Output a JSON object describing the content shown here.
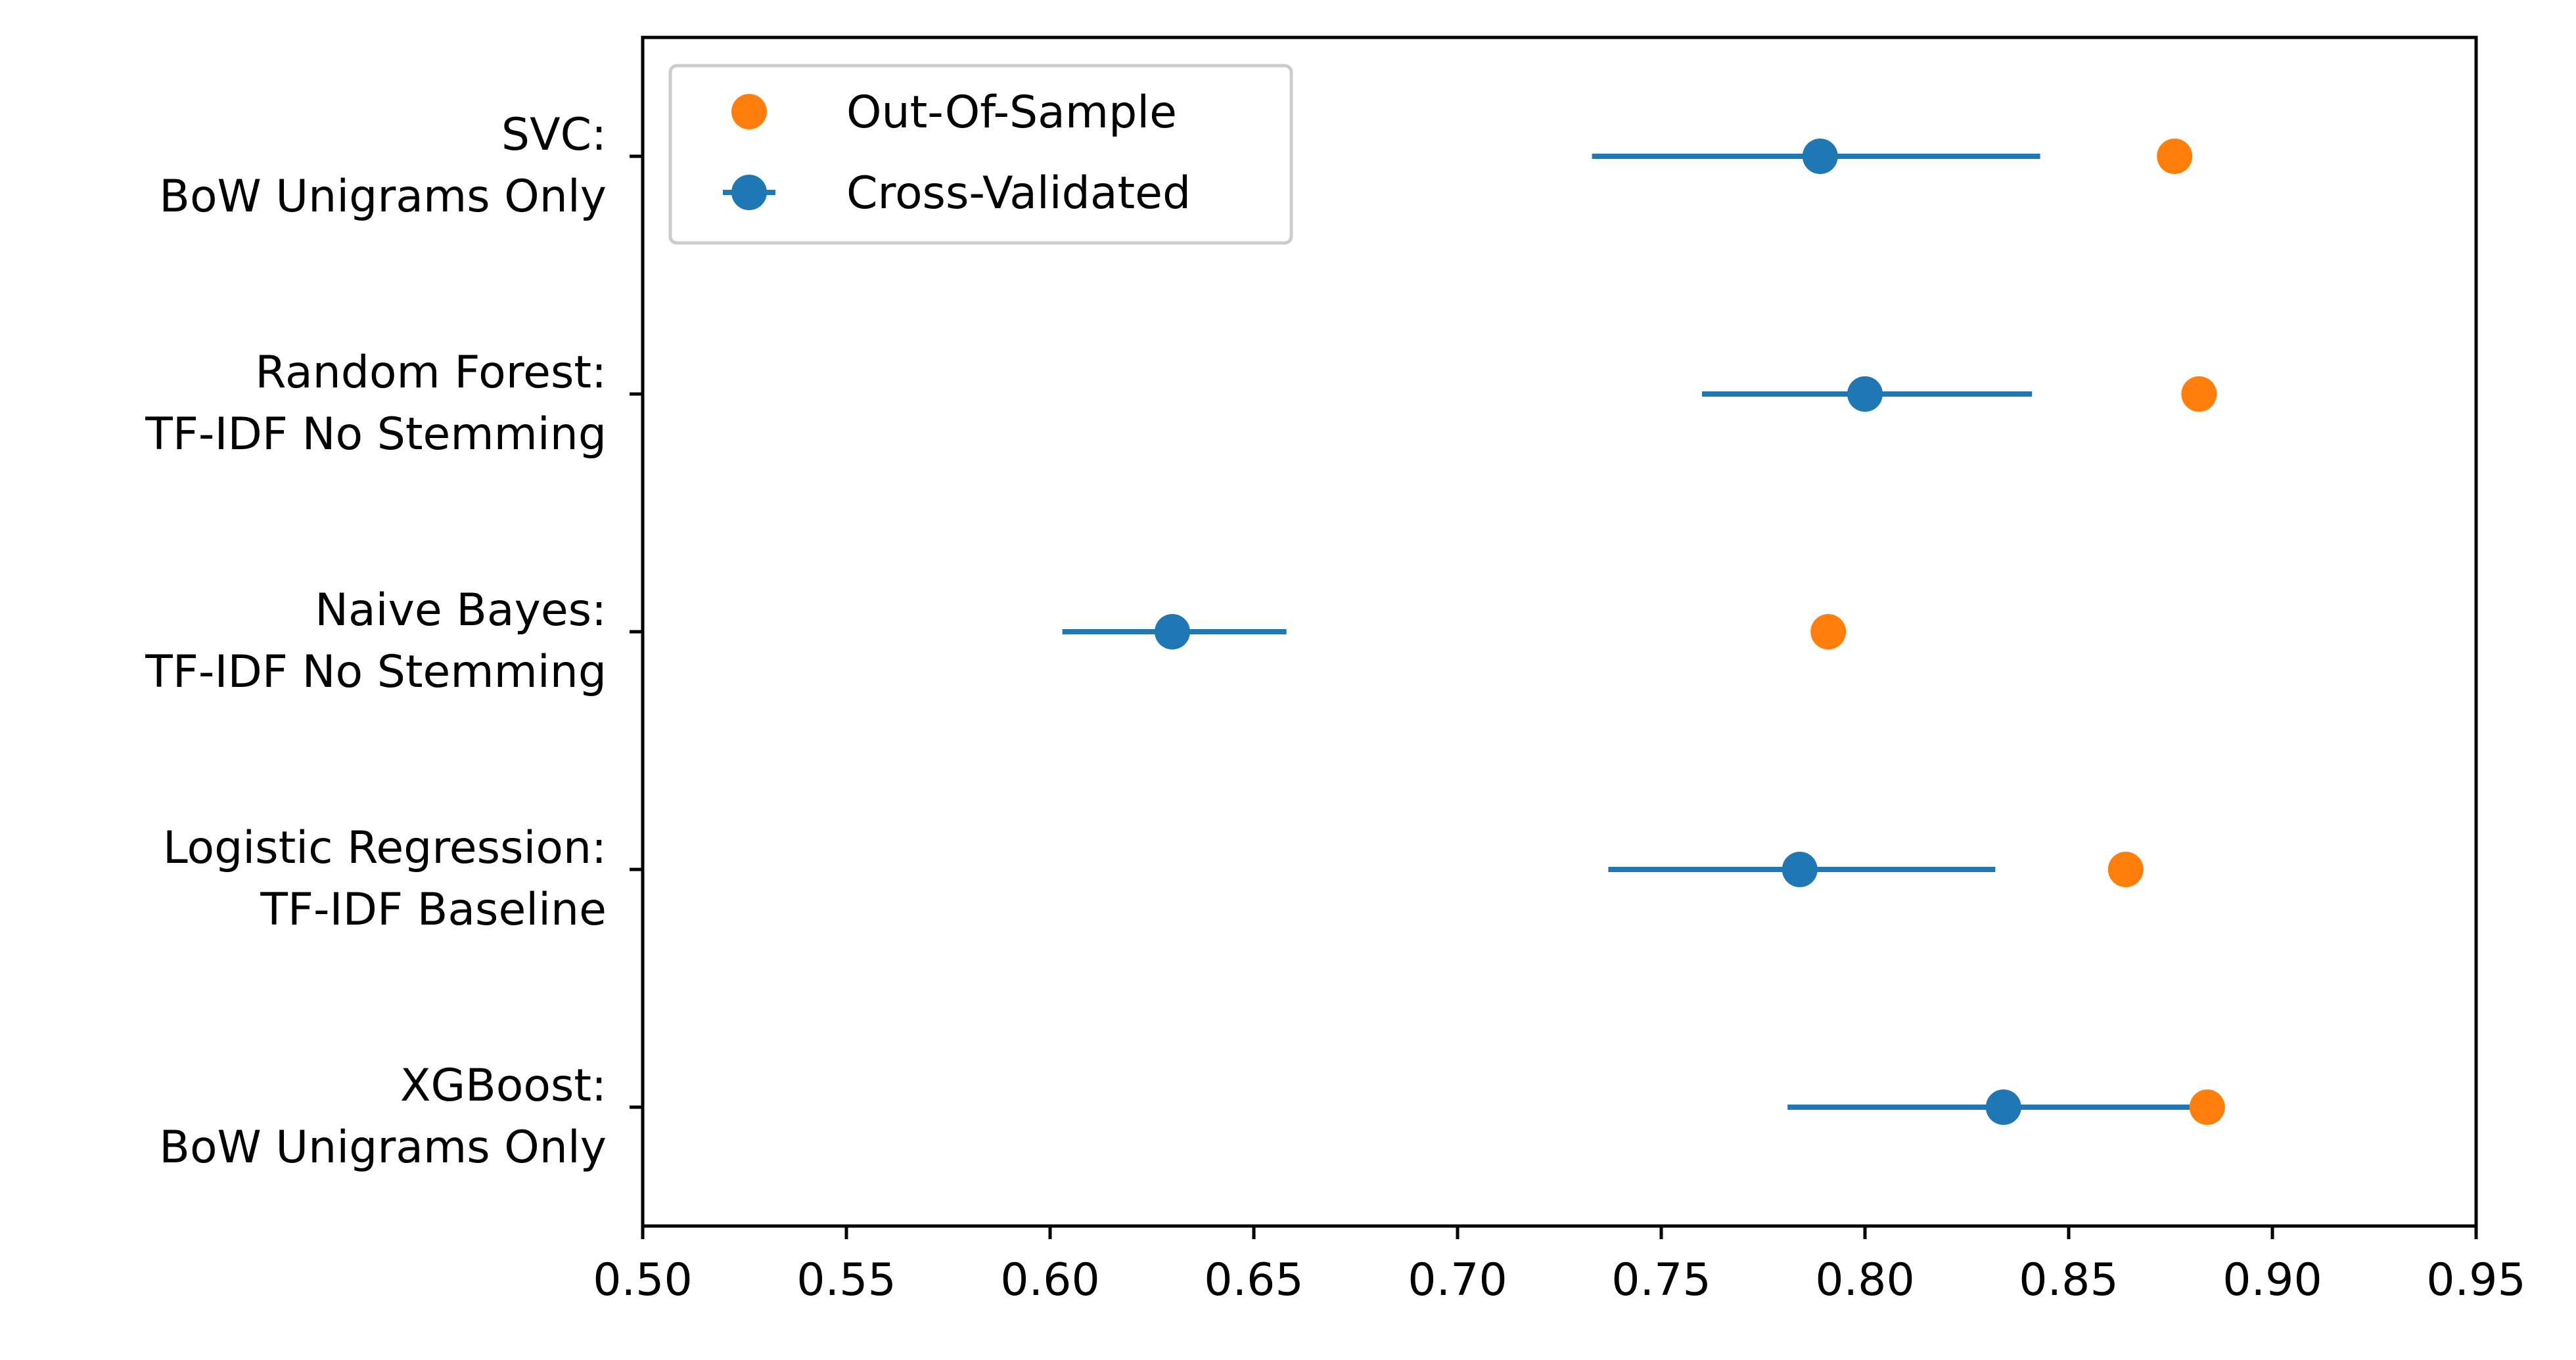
{
  "chart_data": {
    "type": "scatter",
    "orientation": "horizontal",
    "categories": [
      [
        "SVC:",
        "BoW Unigrams Only"
      ],
      [
        "Random Forest:",
        "TF-IDF No Stemming"
      ],
      [
        "Naive Bayes:",
        "TF-IDF No Stemming"
      ],
      [
        "Logistic Regression:",
        "TF-IDF Baseline"
      ],
      [
        "XGBoost:",
        "BoW Unigrams Only"
      ]
    ],
    "series": [
      {
        "name": "Out-Of-Sample",
        "color": "#ff7f0e",
        "marker": "circle",
        "values": [
          0.876,
          0.882,
          0.791,
          0.864,
          0.884
        ]
      },
      {
        "name": "Cross-Validated",
        "color": "#1f77b4",
        "marker": "circle-with-errorbar",
        "values": [
          0.789,
          0.8,
          0.63,
          0.784,
          0.834
        ],
        "error_low": [
          0.733,
          0.76,
          0.603,
          0.737,
          0.781
        ],
        "error_high": [
          0.843,
          0.841,
          0.658,
          0.832,
          0.884
        ]
      }
    ],
    "x_ticks": [
      "0.50",
      "0.55",
      "0.60",
      "0.65",
      "0.70",
      "0.75",
      "0.80",
      "0.85",
      "0.90",
      "0.95"
    ],
    "xlim": [
      0.5,
      0.95
    ],
    "title": "",
    "xlabel": "",
    "ylabel": "",
    "grid": false,
    "legend_position": "top-left"
  }
}
